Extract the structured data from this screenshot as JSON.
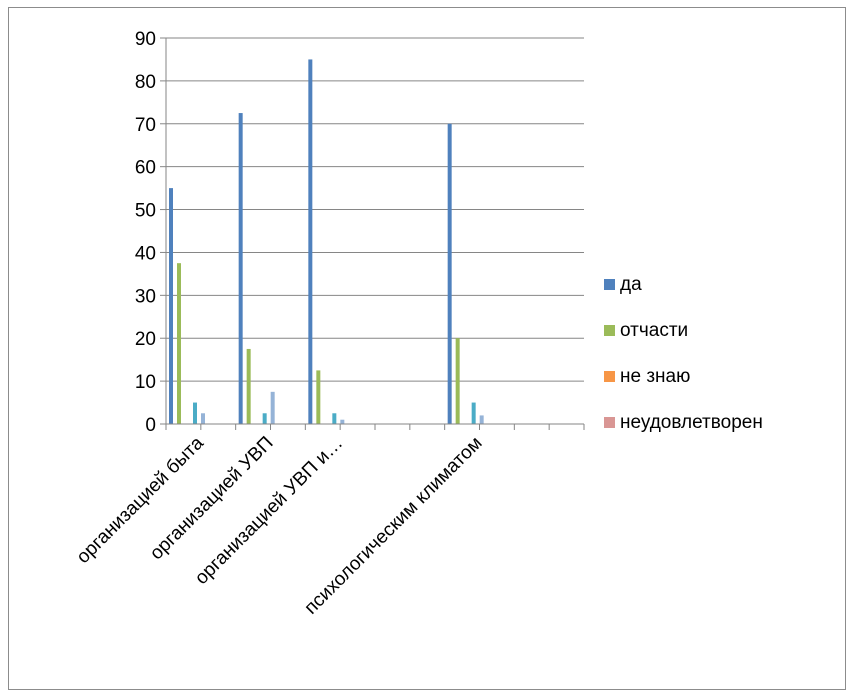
{
  "chart_data": {
    "type": "bar",
    "categories": [
      "организацией быта",
      "организацией УВП",
      "организацией УВП и…",
      "",
      "психологическим климатом",
      ""
    ],
    "series": [
      {
        "name": "да",
        "color": "#4f81bd",
        "values": [
          55,
          72.5,
          85,
          0,
          70,
          0
        ]
      },
      {
        "name": "отчасти",
        "color": "#9bbb59",
        "values": [
          37.5,
          17.5,
          12.5,
          0,
          20,
          0
        ]
      },
      {
        "name": "не знаю",
        "color": "#f79646",
        "values": [
          0,
          0,
          0,
          0,
          0,
          0
        ]
      },
      {
        "name": "",
        "color": "#4bacc6",
        "values": [
          5,
          2.5,
          2.5,
          0,
          5,
          0
        ]
      },
      {
        "name": "",
        "color": "#95b3d7",
        "values": [
          2.5,
          7.5,
          1,
          0,
          2,
          0
        ]
      },
      {
        "name": "неудовлетворен",
        "color": "#d99694",
        "values": [
          0,
          0,
          0,
          0,
          0,
          0
        ]
      }
    ],
    "legend_entries": [
      0,
      1,
      2,
      5
    ],
    "ylim": [
      0,
      90
    ],
    "yticks": [
      "0",
      "10",
      "20",
      "30",
      "40",
      "50",
      "60",
      "70",
      "80",
      "90"
    ],
    "grid": true,
    "legend_position": "right"
  }
}
